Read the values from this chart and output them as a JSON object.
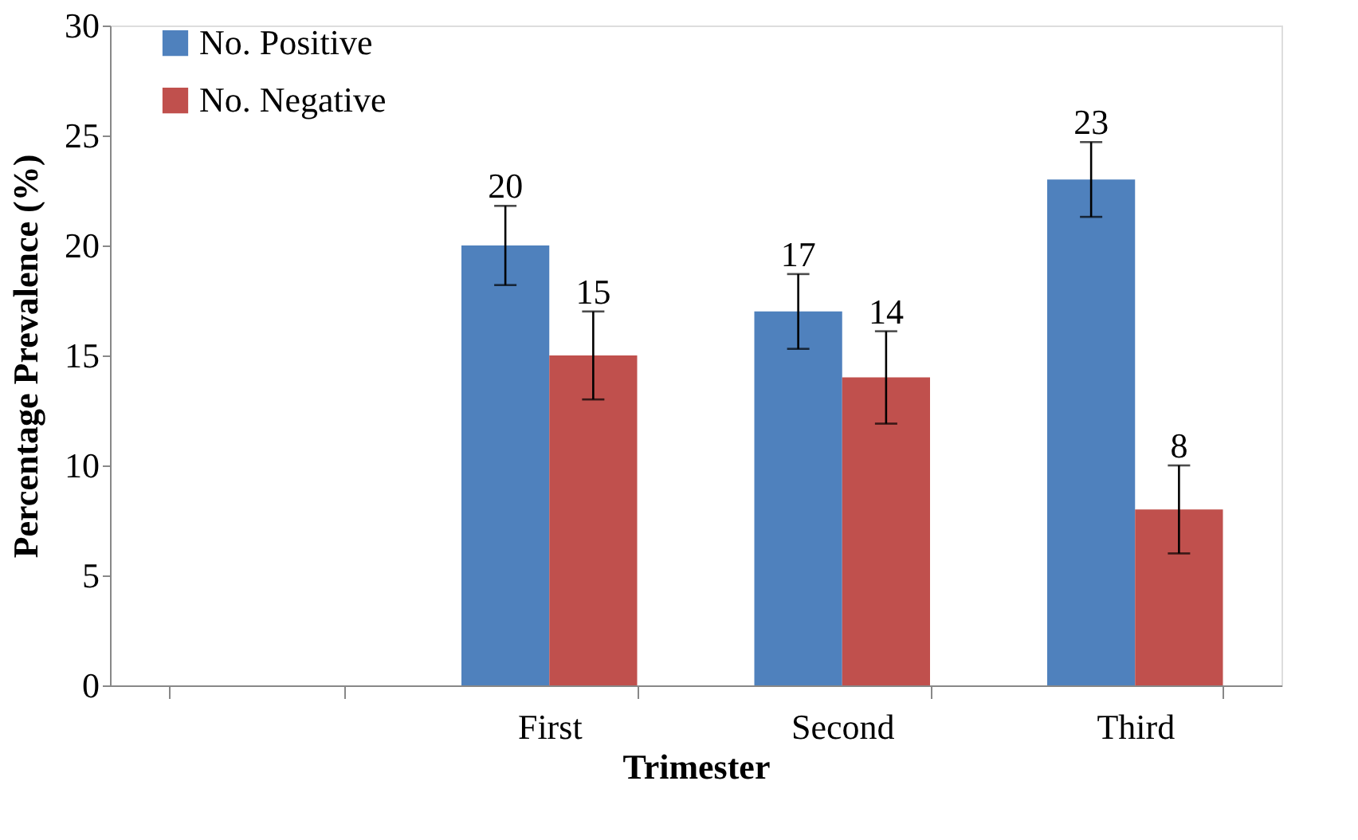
{
  "chart_data": {
    "type": "bar",
    "xlabel": "Trimester",
    "ylabel": "Percentage Prevalence (%)",
    "categories": [
      null,
      "First",
      "Second",
      "Third"
    ],
    "series": [
      {
        "name": "No. Positive",
        "color": "#4f81bd",
        "values": [
          null,
          20,
          17,
          23
        ],
        "errors": [
          null,
          1.8,
          1.7,
          1.7
        ]
      },
      {
        "name": "No. Negative",
        "color": "#c0504d",
        "values": [
          null,
          15,
          14,
          8
        ],
        "errors": [
          null,
          2,
          2.1,
          2
        ]
      }
    ],
    "ylim": [
      0,
      30
    ],
    "yticks": [
      0,
      5,
      10,
      15,
      20,
      25,
      30
    ],
    "grid": false,
    "legend": "top left",
    "data_labels": true
  }
}
